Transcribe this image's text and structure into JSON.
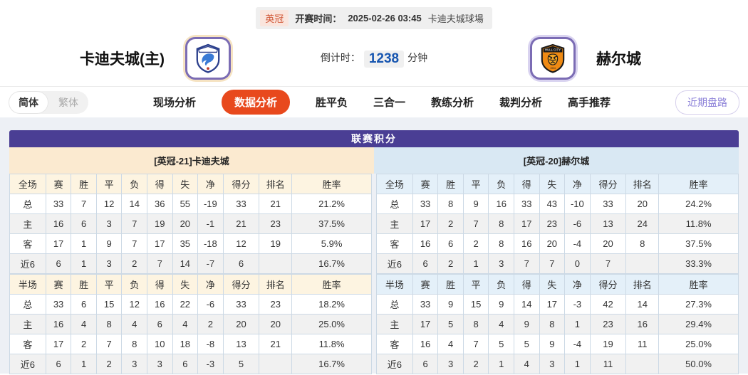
{
  "match_bar": {
    "league": "英冠",
    "kickoff_label": "开赛时间：",
    "kickoff_time": "2025-02-26 03:45",
    "venue": "卡迪夫城球場"
  },
  "teams": {
    "home_name": "卡迪夫城(主)",
    "away_name": "赫尔城"
  },
  "countdown": {
    "label": "倒计时：",
    "minutes": "1238",
    "unit": "分钟"
  },
  "lang": {
    "simplified": "简体",
    "traditional": "繁体"
  },
  "tabs": [
    {
      "label": "现场分析",
      "active": false
    },
    {
      "label": "数据分析",
      "active": true
    },
    {
      "label": "胜平负",
      "active": false
    },
    {
      "label": "三合一",
      "active": false
    },
    {
      "label": "教练分析",
      "active": false
    },
    {
      "label": "裁判分析",
      "active": false
    },
    {
      "label": "高手推荐",
      "active": false
    }
  ],
  "recent_trend_button": "近期盘路",
  "colors": {
    "accent_orange": "#e8491d",
    "purple_header": "#4a3e94",
    "home_panel_cream": "#fbead0",
    "away_panel_blue": "#d9e8f3",
    "home_row_red": "#cc0000",
    "away_row_blue": "#1414cc",
    "countdown_blue": "#1655b0"
  },
  "league_table": {
    "title": "联赛积分",
    "home": {
      "header": "[英冠-21]卡迪夫城",
      "sections": [
        {
          "columns": [
            "全场",
            "赛",
            "胜",
            "平",
            "负",
            "得",
            "失",
            "净",
            "得分",
            "排名",
            "胜率"
          ],
          "rows": [
            [
              "总",
              "33",
              "7",
              "12",
              "14",
              "36",
              "55",
              "-19",
              "33",
              "21",
              "21.2%"
            ],
            [
              "主",
              "16",
              "6",
              "3",
              "7",
              "19",
              "20",
              "-1",
              "21",
              "23",
              "37.5%"
            ],
            [
              "客",
              "17",
              "1",
              "9",
              "7",
              "17",
              "35",
              "-18",
              "12",
              "19",
              "5.9%"
            ],
            [
              "近6",
              "6",
              "1",
              "3",
              "2",
              "7",
              "14",
              "-7",
              "6",
              "",
              "16.7%"
            ]
          ]
        },
        {
          "columns": [
            "半场",
            "赛",
            "胜",
            "平",
            "负",
            "得",
            "失",
            "净",
            "得分",
            "排名",
            "胜率"
          ],
          "rows": [
            [
              "总",
              "33",
              "6",
              "15",
              "12",
              "16",
              "22",
              "-6",
              "33",
              "23",
              "18.2%"
            ],
            [
              "主",
              "16",
              "4",
              "8",
              "4",
              "6",
              "4",
              "2",
              "20",
              "20",
              "25.0%"
            ],
            [
              "客",
              "17",
              "2",
              "7",
              "8",
              "10",
              "18",
              "-8",
              "13",
              "21",
              "11.8%"
            ],
            [
              "近6",
              "6",
              "1",
              "2",
              "3",
              "3",
              "6",
              "-3",
              "5",
              "",
              "16.7%"
            ]
          ]
        }
      ]
    },
    "away": {
      "header": "[英冠-20]赫尔城",
      "sections": [
        {
          "columns": [
            "全场",
            "赛",
            "胜",
            "平",
            "负",
            "得",
            "失",
            "净",
            "得分",
            "排名",
            "胜率"
          ],
          "rows": [
            [
              "总",
              "33",
              "8",
              "9",
              "16",
              "33",
              "43",
              "-10",
              "33",
              "20",
              "24.2%"
            ],
            [
              "主",
              "17",
              "2",
              "7",
              "8",
              "17",
              "23",
              "-6",
              "13",
              "24",
              "11.8%"
            ],
            [
              "客",
              "16",
              "6",
              "2",
              "8",
              "16",
              "20",
              "-4",
              "20",
              "8",
              "37.5%"
            ],
            [
              "近6",
              "6",
              "2",
              "1",
              "3",
              "7",
              "7",
              "0",
              "7",
              "",
              "33.3%"
            ]
          ]
        },
        {
          "columns": [
            "半场",
            "赛",
            "胜",
            "平",
            "负",
            "得",
            "失",
            "净",
            "得分",
            "排名",
            "胜率"
          ],
          "rows": [
            [
              "总",
              "33",
              "9",
              "15",
              "9",
              "14",
              "17",
              "-3",
              "42",
              "14",
              "27.3%"
            ],
            [
              "主",
              "17",
              "5",
              "8",
              "4",
              "9",
              "8",
              "1",
              "23",
              "16",
              "29.4%"
            ],
            [
              "客",
              "16",
              "4",
              "7",
              "5",
              "5",
              "9",
              "-4",
              "19",
              "11",
              "25.0%"
            ],
            [
              "近6",
              "6",
              "3",
              "2",
              "1",
              "4",
              "3",
              "1",
              "11",
              "",
              "50.0%"
            ]
          ]
        }
      ]
    }
  }
}
